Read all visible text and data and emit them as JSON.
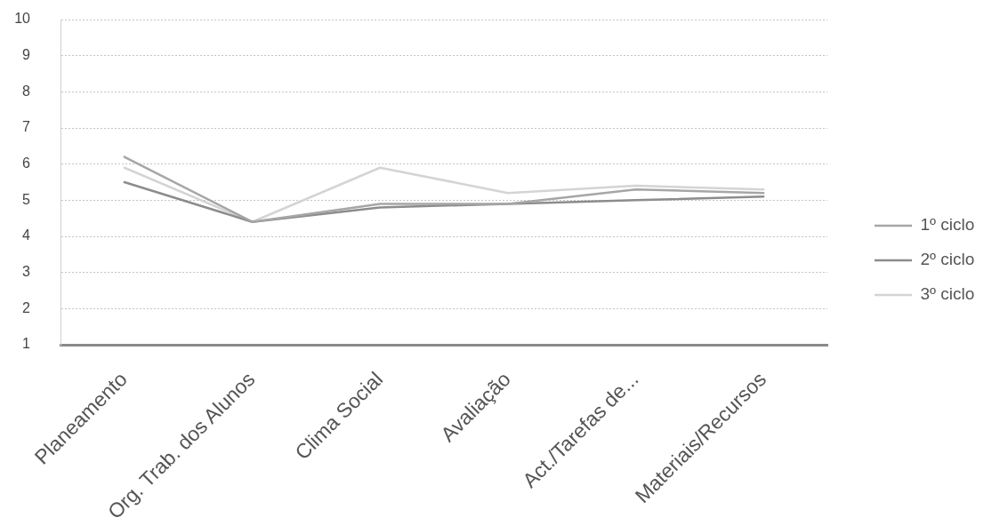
{
  "chart_data": {
    "type": "line",
    "categories": [
      "Planeamento",
      "Org. Trab. dos Alunos",
      "Clima Social",
      "Avaliação",
      "Act./Tarefas de...",
      "Materiais/Recursos"
    ],
    "series": [
      {
        "name": "1º ciclo",
        "color": "#a6a6a6",
        "values": [
          6.2,
          4.4,
          4.9,
          4.9,
          5.3,
          5.2
        ]
      },
      {
        "name": "2º ciclo",
        "color": "#8c8c8c",
        "values": [
          5.5,
          4.4,
          4.8,
          4.9,
          5.0,
          5.1
        ]
      },
      {
        "name": "3º ciclo",
        "color": "#d4d4d4",
        "values": [
          5.9,
          4.4,
          5.9,
          5.2,
          5.4,
          5.3
        ]
      }
    ],
    "ylim": [
      1,
      10
    ],
    "yticks": [
      1,
      2,
      3,
      4,
      5,
      6,
      7,
      8,
      9,
      10
    ],
    "grid": "y",
    "legend": "right",
    "marker": "none"
  }
}
